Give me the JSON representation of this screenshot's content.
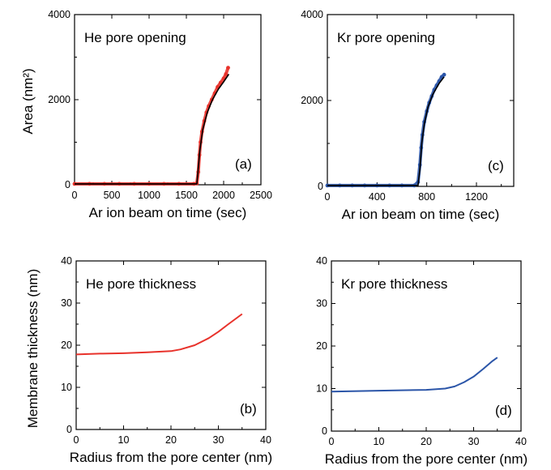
{
  "figure": {
    "shared_ylabels": {
      "area": "Area (nm²)",
      "thickness": "Membrane thickness (nm)"
    }
  },
  "chart_data": [
    {
      "id": "a",
      "type": "scatter",
      "title": "He pore opening",
      "panel_label": "(a)",
      "xlabel": "Ar ion beam on time (sec)",
      "ylabel": "Area (nm²)",
      "xlim": [
        0,
        2500
      ],
      "ylim": [
        0,
        4000
      ],
      "xticks": [
        0,
        500,
        1000,
        1500,
        2000,
        2500
      ],
      "yticks": [
        0,
        2000,
        4000
      ],
      "ytick_labels": [
        "0",
        "2000",
        "4000"
      ],
      "grid": false,
      "series": [
        {
          "color": "#e8322b",
          "points": [
            [
              0,
              20
            ],
            [
              200,
              20
            ],
            [
              400,
              20
            ],
            [
              600,
              20
            ],
            [
              800,
              20
            ],
            [
              1000,
              20
            ],
            [
              1200,
              20
            ],
            [
              1400,
              20
            ],
            [
              1600,
              20
            ],
            [
              1640,
              30
            ],
            [
              1660,
              300
            ],
            [
              1675,
              700
            ],
            [
              1690,
              1000
            ],
            [
              1710,
              1250
            ],
            [
              1740,
              1500
            ],
            [
              1770,
              1700
            ],
            [
              1800,
              1850
            ],
            [
              1840,
              2000
            ],
            [
              1880,
              2150
            ],
            [
              1920,
              2300
            ],
            [
              1960,
              2400
            ],
            [
              2000,
              2500
            ],
            [
              2030,
              2600
            ],
            [
              2060,
              2750
            ]
          ]
        },
        {
          "type": "line",
          "color": "#000000",
          "points": [
            [
              0,
              20
            ],
            [
              1640,
              20
            ],
            [
              1655,
              300
            ],
            [
              1680,
              800
            ],
            [
              1720,
              1300
            ],
            [
              1780,
              1700
            ],
            [
              1850,
              2000
            ],
            [
              1930,
              2250
            ],
            [
              2000,
              2420
            ],
            [
              2070,
              2600
            ]
          ]
        }
      ]
    },
    {
      "id": "c",
      "type": "scatter",
      "title": "Kr pore opening",
      "panel_label": "(c)",
      "xlabel": "Ar ion beam on time (sec)",
      "ylabel": "Area (nm²)",
      "xlim": [
        0,
        1500
      ],
      "ylim": [
        0,
        4000
      ],
      "xticks": [
        0,
        400,
        800,
        1200
      ],
      "yticks": [
        0,
        2000,
        4000
      ],
      "ytick_labels": [
        "0",
        "2000",
        "4000"
      ],
      "grid": false,
      "series": [
        {
          "color": "#2b55a8",
          "points": [
            [
              0,
              20
            ],
            [
              100,
              20
            ],
            [
              200,
              20
            ],
            [
              300,
              20
            ],
            [
              400,
              20
            ],
            [
              500,
              20
            ],
            [
              600,
              20
            ],
            [
              700,
              20
            ],
            [
              730,
              100
            ],
            [
              745,
              500
            ],
            [
              755,
              900
            ],
            [
              765,
              1200
            ],
            [
              780,
              1500
            ],
            [
              800,
              1750
            ],
            [
              820,
              1950
            ],
            [
              840,
              2100
            ],
            [
              860,
              2250
            ],
            [
              880,
              2350
            ],
            [
              900,
              2450
            ],
            [
              920,
              2550
            ],
            [
              940,
              2600
            ]
          ]
        },
        {
          "type": "line",
          "color": "#000000",
          "points": [
            [
              0,
              20
            ],
            [
              730,
              20
            ],
            [
              745,
              400
            ],
            [
              760,
              1000
            ],
            [
              780,
              1450
            ],
            [
              810,
              1850
            ],
            [
              850,
              2150
            ],
            [
              900,
              2400
            ],
            [
              940,
              2550
            ]
          ]
        }
      ]
    },
    {
      "id": "b",
      "type": "line",
      "title": "He pore thickness",
      "panel_label": "(b)",
      "xlabel": "Radius from the pore center (nm)",
      "ylabel": "Membrane thickness (nm)",
      "xlim": [
        0,
        40
      ],
      "ylim": [
        0,
        40
      ],
      "xticks": [
        0,
        10,
        20,
        30,
        40
      ],
      "yticks": [
        0,
        10,
        20,
        30,
        40
      ],
      "ytick_labels": [
        "0",
        "10",
        "20",
        "30",
        "40"
      ],
      "grid": false,
      "series": [
        {
          "color": "#e8322b",
          "points": [
            [
              0,
              17.8
            ],
            [
              5,
              18.0
            ],
            [
              10,
              18.1
            ],
            [
              15,
              18.3
            ],
            [
              20,
              18.6
            ],
            [
              22,
              19.0
            ],
            [
              25,
              20.0
            ],
            [
              28,
              21.7
            ],
            [
              30,
              23.2
            ],
            [
              32,
              24.9
            ],
            [
              35,
              27.4
            ]
          ]
        }
      ]
    },
    {
      "id": "d",
      "type": "line",
      "title": "Kr pore thickness",
      "panel_label": "(d)",
      "xlabel": "Radius from the pore center (nm)",
      "ylabel": "Membrane thickness (nm)",
      "xlim": [
        0,
        40
      ],
      "ylim": [
        0,
        40
      ],
      "xticks": [
        0,
        10,
        20,
        30,
        40
      ],
      "yticks": [
        0,
        10,
        20,
        30,
        40
      ],
      "ytick_labels": [
        "0",
        "10",
        "20",
        "30",
        "40"
      ],
      "grid": false,
      "series": [
        {
          "color": "#2b55a8",
          "points": [
            [
              0,
              9.3
            ],
            [
              10,
              9.5
            ],
            [
              20,
              9.7
            ],
            [
              24,
              10.0
            ],
            [
              26,
              10.5
            ],
            [
              28,
              11.5
            ],
            [
              30,
              12.8
            ],
            [
              32,
              14.6
            ],
            [
              34,
              16.5
            ],
            [
              35,
              17.3
            ]
          ]
        }
      ]
    }
  ]
}
